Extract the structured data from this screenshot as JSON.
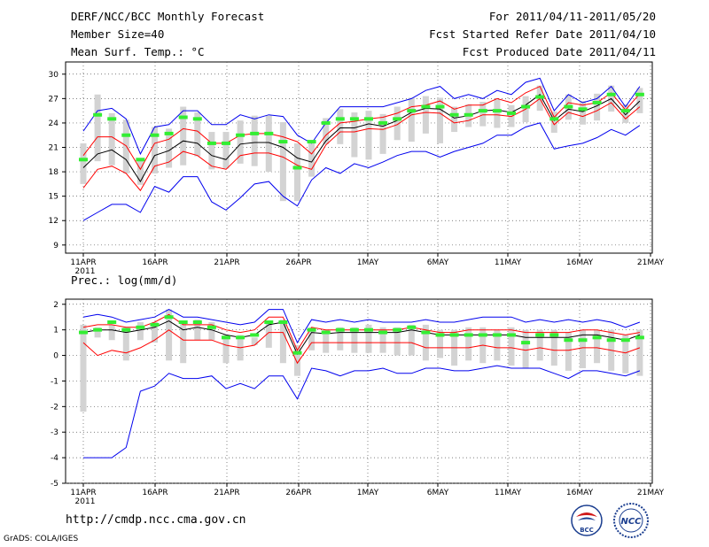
{
  "header": {
    "title": "DERF/NCC/BCC Monthly Forecast",
    "member_size": "Member Size=40",
    "variable": "Mean Surf. Temp.: °C",
    "forecast_range": "For 2011/04/11-2011/05/20",
    "started_refer": "Fcst Started Refer Date 2011/04/10",
    "produced": "Fcst Produced Date 2011/04/11"
  },
  "precip_label": "Prec.: log(mm/d)",
  "footer": {
    "url": "http://cmdp.ncc.cma.gov.cn",
    "credit": "GrADS: COLA/IGES",
    "logo_bcc": "BCC",
    "logo_ncc": "NCC"
  },
  "colors": {
    "max_min": "#0000ee",
    "std_band": "#ff0000",
    "mean": "#000000",
    "box": "#d3d3d3",
    "median": "#33ee33"
  },
  "chart_data": [
    {
      "type": "line",
      "title": "Mean Surf. Temp.: °C",
      "x_tick_labels": [
        "11APR",
        "16APR",
        "21APR",
        "26APR",
        "1MAY",
        "6MAY",
        "11MAY",
        "16MAY",
        "21MAY"
      ],
      "x_year_label": "2011",
      "y_ticks": [
        9,
        12,
        15,
        18,
        21,
        24,
        27,
        30
      ],
      "ylim": [
        8,
        31.5
      ],
      "x": [
        1,
        2,
        3,
        4,
        5,
        6,
        7,
        8,
        9,
        10,
        11,
        12,
        13,
        14,
        15,
        16,
        17,
        18,
        19,
        20,
        21,
        22,
        23,
        24,
        25,
        26,
        27,
        28,
        29,
        30,
        31,
        32,
        33,
        34,
        35,
        36,
        37,
        38,
        39,
        40
      ],
      "series": [
        {
          "name": "max",
          "values": [
            23,
            25.5,
            25.8,
            24.5,
            20.2,
            23.5,
            23.8,
            25.5,
            25.5,
            23.8,
            23.8,
            25,
            24.5,
            25,
            24.8,
            22.5,
            21.5,
            24,
            26,
            26,
            26,
            26,
            26.5,
            27,
            28,
            28.5,
            27,
            27.5,
            27,
            28,
            27.5,
            29,
            29.5,
            25.5,
            27.5,
            26.5,
            27,
            28.5,
            26,
            28.5
          ]
        },
        {
          "name": "std_upper",
          "values": [
            20,
            22.3,
            22.3,
            21.2,
            18.3,
            21.5,
            22,
            23.3,
            23,
            21.5,
            21.5,
            22.5,
            22.7,
            22.7,
            22.3,
            21.7,
            20.2,
            22.5,
            24,
            24.2,
            24.5,
            24.7,
            25.2,
            26,
            26.2,
            26.7,
            25.7,
            26.2,
            26.2,
            27,
            26.5,
            27.7,
            28.5,
            24.7,
            26.5,
            26.2,
            26.5,
            27.7,
            25.6,
            27.6
          ]
        },
        {
          "name": "mean",
          "values": [
            18.5,
            20.2,
            20.7,
            19.5,
            16.8,
            20,
            20.6,
            21.8,
            21.5,
            20,
            19.5,
            21.4,
            21.6,
            21.6,
            21,
            19.7,
            19.2,
            21.8,
            23.4,
            23.4,
            23.9,
            23.6,
            24.3,
            25.3,
            25.8,
            25.7,
            24.6,
            24.9,
            25.5,
            25.6,
            25.3,
            26.2,
            27.5,
            24.3,
            25.7,
            25.4,
            26.1,
            27,
            25,
            26.7
          ]
        },
        {
          "name": "std_lower",
          "values": [
            16,
            18.3,
            18.7,
            17.8,
            15.7,
            18.7,
            19.2,
            20.5,
            20,
            18.7,
            18.3,
            20,
            20.3,
            20.3,
            19.8,
            18.8,
            18.3,
            21.3,
            22.9,
            22.9,
            23.3,
            23.2,
            23.8,
            25,
            25.3,
            25.2,
            24,
            24.3,
            25,
            25,
            24.8,
            25.7,
            27,
            23.8,
            25.3,
            24.8,
            25.5,
            26.5,
            24.5,
            26
          ]
        },
        {
          "name": "min",
          "values": [
            12,
            13,
            14,
            14,
            13,
            16.2,
            15.5,
            17.4,
            17.4,
            14.3,
            13.3,
            14.8,
            16.5,
            16.8,
            15,
            13.8,
            17,
            18.5,
            17.8,
            19,
            18.5,
            19.2,
            20,
            20.5,
            20.5,
            19.8,
            20.5,
            21,
            21.5,
            22.5,
            22.5,
            23.5,
            24,
            20.8,
            21.2,
            21.5,
            22.2,
            23.2,
            22.5,
            23.7
          ]
        },
        {
          "name": "median",
          "values": [
            19.5,
            25,
            24.5,
            22.5,
            19.5,
            22.5,
            22.7,
            24.7,
            24.5,
            21.5,
            21.5,
            22.5,
            22.7,
            22.7,
            21.7,
            18.5,
            21.7,
            24,
            24.5,
            24.5,
            24.5,
            24,
            24.5,
            25.5,
            26,
            26,
            25,
            25,
            25.5,
            25.5,
            25.2,
            26,
            27.2,
            24.5,
            26,
            25.7,
            26.5,
            27.5,
            25.5,
            27.5
          ]
        },
        {
          "name": "box_top",
          "values": [
            21.5,
            27.5,
            25.2,
            24.4,
            19.5,
            23.5,
            23.3,
            26,
            25.3,
            22.9,
            22.9,
            24.3,
            24.9,
            24.9,
            24.1,
            21.5,
            21.6,
            24.6,
            25.7,
            25.3,
            25.5,
            25.1,
            26,
            27.1,
            27.3,
            27.1,
            26,
            26.3,
            26.6,
            26.9,
            26.2,
            27.3,
            28.6,
            25.4,
            27.5,
            26.7,
            27.6,
            28.6,
            26.3,
            28.3
          ]
        },
        {
          "name": "box_bottom",
          "values": [
            16.5,
            19.3,
            18.8,
            17.8,
            16.4,
            17.8,
            18.5,
            18.8,
            19.9,
            18.3,
            18.4,
            19,
            18.7,
            18,
            14.4,
            14.4,
            17.4,
            21.4,
            21.4,
            19.8,
            19.5,
            20.2,
            21.9,
            21.7,
            22.7,
            21.5,
            22.9,
            23.5,
            23.6,
            23.4,
            23.5,
            24.1,
            25.5,
            22.8,
            24.4,
            23.8,
            24.3,
            25.4,
            24,
            25.2
          ]
        }
      ]
    },
    {
      "type": "line",
      "title": "Prec.: log(mm/d)",
      "x_tick_labels": [
        "11APR",
        "16APR",
        "21APR",
        "26APR",
        "1MAY",
        "6MAY",
        "11MAY",
        "16MAY",
        "21MAY"
      ],
      "x_year_label": "2011",
      "y_ticks": [
        -5,
        -4,
        -3,
        -2,
        -1,
        0,
        1,
        2
      ],
      "ylim": [
        -5,
        2.2
      ],
      "x": [
        1,
        2,
        3,
        4,
        5,
        6,
        7,
        8,
        9,
        10,
        11,
        12,
        13,
        14,
        15,
        16,
        17,
        18,
        19,
        20,
        21,
        22,
        23,
        24,
        25,
        26,
        27,
        28,
        29,
        30,
        31,
        32,
        33,
        34,
        35,
        36,
        37,
        38,
        39,
        40
      ],
      "series": [
        {
          "name": "max",
          "values": [
            1.5,
            1.6,
            1.5,
            1.3,
            1.4,
            1.5,
            1.8,
            1.5,
            1.5,
            1.4,
            1.3,
            1.2,
            1.3,
            1.8,
            1.8,
            0.5,
            1.4,
            1.3,
            1.4,
            1.3,
            1.4,
            1.3,
            1.3,
            1.3,
            1.4,
            1.3,
            1.3,
            1.4,
            1.5,
            1.5,
            1.5,
            1.3,
            1.4,
            1.3,
            1.4,
            1.3,
            1.4,
            1.3,
            1.1,
            1.3
          ]
        },
        {
          "name": "std_upper",
          "values": [
            1.1,
            1.2,
            1.2,
            1.1,
            1.1,
            1.3,
            1.6,
            1.2,
            1.2,
            1.2,
            1.0,
            0.9,
            1.0,
            1.5,
            1.5,
            0.2,
            1.1,
            1.0,
            1.0,
            1.0,
            1.0,
            1.0,
            1.0,
            1.1,
            1.0,
            0.9,
            0.9,
            1.0,
            1.0,
            1.0,
            1.0,
            0.9,
            0.9,
            0.9,
            0.9,
            1.0,
            1.0,
            0.9,
            0.8,
            0.9
          ]
        },
        {
          "name": "mean",
          "values": [
            0.9,
            1.0,
            1.0,
            0.9,
            1.0,
            1.1,
            1.35,
            1.0,
            1.1,
            1.0,
            0.8,
            0.7,
            0.8,
            1.2,
            1.3,
            0.05,
            0.9,
            0.85,
            0.9,
            0.9,
            0.9,
            0.9,
            0.9,
            1.0,
            0.9,
            0.8,
            0.8,
            0.8,
            0.8,
            0.8,
            0.8,
            0.7,
            0.7,
            0.7,
            0.7,
            0.8,
            0.8,
            0.7,
            0.6,
            0.8
          ]
        },
        {
          "name": "std_lower",
          "values": [
            0.5,
            0,
            0.2,
            0.1,
            0.3,
            0.6,
            1.0,
            0.6,
            0.6,
            0.6,
            0.4,
            0.3,
            0.4,
            0.9,
            0.9,
            -0.3,
            0.5,
            0.5,
            0.5,
            0.5,
            0.5,
            0.5,
            0.5,
            0.5,
            0.3,
            0.3,
            0.3,
            0.3,
            0.4,
            0.3,
            0.3,
            0.2,
            0.3,
            0.2,
            0.2,
            0.3,
            0.3,
            0.2,
            0.1,
            0.3
          ]
        },
        {
          "name": "min",
          "values": [
            -4,
            -4,
            -4,
            -3.6,
            -1.4,
            -1.2,
            -0.7,
            -0.9,
            -0.9,
            -0.8,
            -1.3,
            -1.1,
            -1.3,
            -0.8,
            -0.8,
            -1.7,
            -0.5,
            -0.6,
            -0.8,
            -0.6,
            -0.6,
            -0.5,
            -0.7,
            -0.7,
            -0.5,
            -0.5,
            -0.6,
            -0.6,
            -0.5,
            -0.4,
            -0.5,
            -0.5,
            -0.5,
            -0.7,
            -0.9,
            -0.6,
            -0.6,
            -0.7,
            -0.8,
            -0.6
          ]
        },
        {
          "name": "median",
          "values": [
            0.9,
            1.0,
            1.3,
            1.0,
            1.1,
            1.2,
            1.5,
            1.3,
            1.3,
            1.1,
            0.7,
            0.7,
            0.8,
            1.3,
            1.3,
            0.1,
            1.0,
            0.9,
            1.0,
            1.0,
            1.0,
            0.9,
            1.0,
            1.1,
            0.9,
            0.8,
            0.8,
            0.8,
            0.8,
            0.8,
            0.8,
            0.5,
            0.8,
            0.8,
            0.6,
            0.6,
            0.7,
            0.6,
            0.6,
            0.7
          ]
        },
        {
          "name": "box_top",
          "values": [
            1.2,
            1.1,
            1.2,
            1.1,
            1.3,
            1.3,
            1.8,
            1.3,
            1.4,
            1.3,
            0.8,
            0.8,
            0.7,
            1.3,
            1.4,
            0.4,
            1.1,
            1.0,
            1.1,
            1.1,
            1.2,
            1.1,
            1.1,
            1.2,
            1.2,
            1.0,
            1.0,
            1.1,
            1.1,
            1.0,
            1.1,
            1.0,
            1.0,
            1.0,
            0.9,
            1.0,
            1.0,
            1.0,
            0.8,
            1.0
          ]
        },
        {
          "name": "box_bottom",
          "values": [
            -2.2,
            0.7,
            0.6,
            -0.2,
            0.6,
            0.5,
            -0.2,
            -0.3,
            0.6,
            0.6,
            -0.3,
            -0.2,
            0.4,
            0.3,
            -0.3,
            -0.8,
            0.2,
            0.1,
            0.2,
            0.1,
            0.1,
            0.1,
            0.0,
            0.0,
            -0.2,
            -0.1,
            -0.4,
            -0.2,
            -0.3,
            -0.2,
            -0.4,
            -0.5,
            -0.2,
            -0.4,
            -0.6,
            -0.5,
            -0.3,
            -0.6,
            -0.7,
            -0.8
          ]
        }
      ]
    }
  ]
}
